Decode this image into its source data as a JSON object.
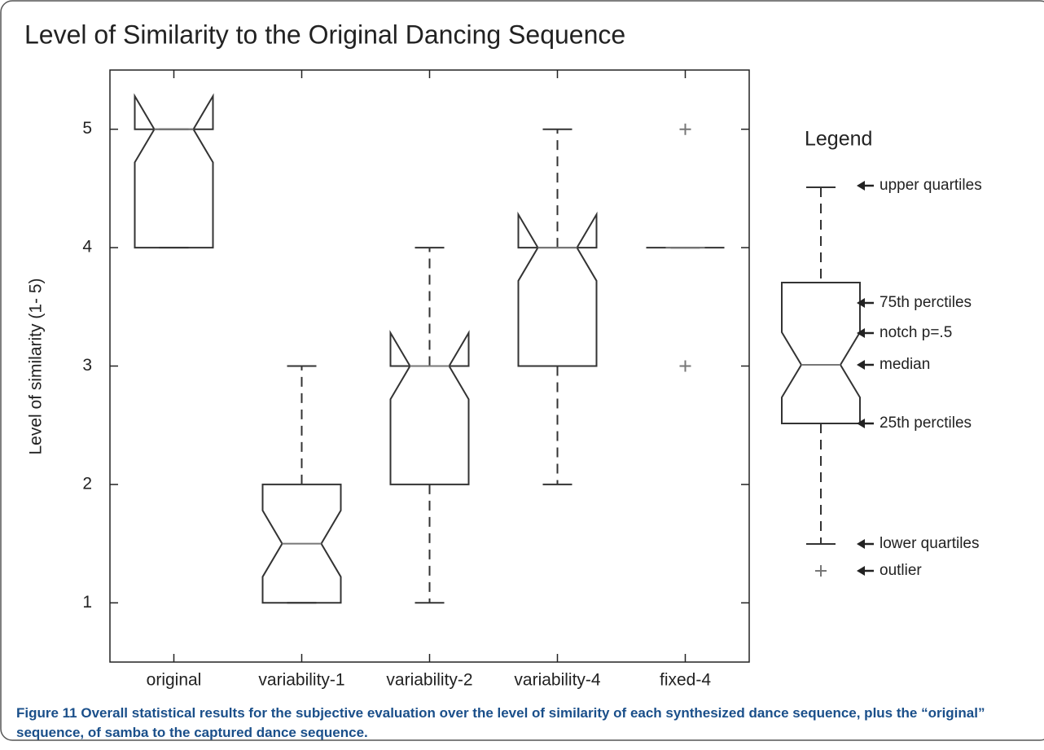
{
  "chart_data": {
    "type": "box",
    "title": "Level of Similarity to the Original Dancing Sequence",
    "y_label": "Level of similarity (1- 5)",
    "categories": [
      "original",
      "variability-1",
      "variability-2",
      "variability-4",
      "fixed-4"
    ],
    "boxes": [
      {
        "low": 4,
        "q1": 4,
        "median": 5,
        "q3": 5,
        "high": 5,
        "notch_low": 4.72,
        "notch_high": 5.28,
        "outliers": []
      },
      {
        "low": 1,
        "q1": 1,
        "median": 1.5,
        "q3": 2,
        "high": 3,
        "notch_low": 1.22,
        "notch_high": 1.78,
        "outliers": []
      },
      {
        "low": 1,
        "q1": 2,
        "median": 3,
        "q3": 3,
        "high": 4,
        "notch_low": 2.72,
        "notch_high": 3.28,
        "outliers": []
      },
      {
        "low": 2,
        "q1": 3,
        "median": 4,
        "q3": 4,
        "high": 5,
        "notch_low": 3.72,
        "notch_high": 4.28,
        "outliers": []
      },
      {
        "low": 4,
        "q1": 4,
        "median": 4,
        "q3": 4,
        "high": 4,
        "notch_low": 4,
        "notch_high": 4,
        "outliers": [
          5,
          3
        ]
      }
    ],
    "color": "#333333",
    "median_color": "#777777",
    "outlier_color": "#777777",
    "ylim": [
      0.5,
      5.5
    ],
    "yticks": [
      1,
      2,
      3,
      4,
      5
    ],
    "legend": {
      "title": "Legend",
      "items": [
        "upper quartiles",
        "75th perctiles",
        "notch p=.5",
        "median",
        "25th perctiles",
        "lower quartiles",
        "outlier"
      ]
    },
    "caption_label": "Figure 11",
    "caption": "Overall statistical results for the subjective evaluation over the level of similarity of each synthesized dance sequence, plus the “original” sequence, of samba to the captured dance sequence."
  }
}
